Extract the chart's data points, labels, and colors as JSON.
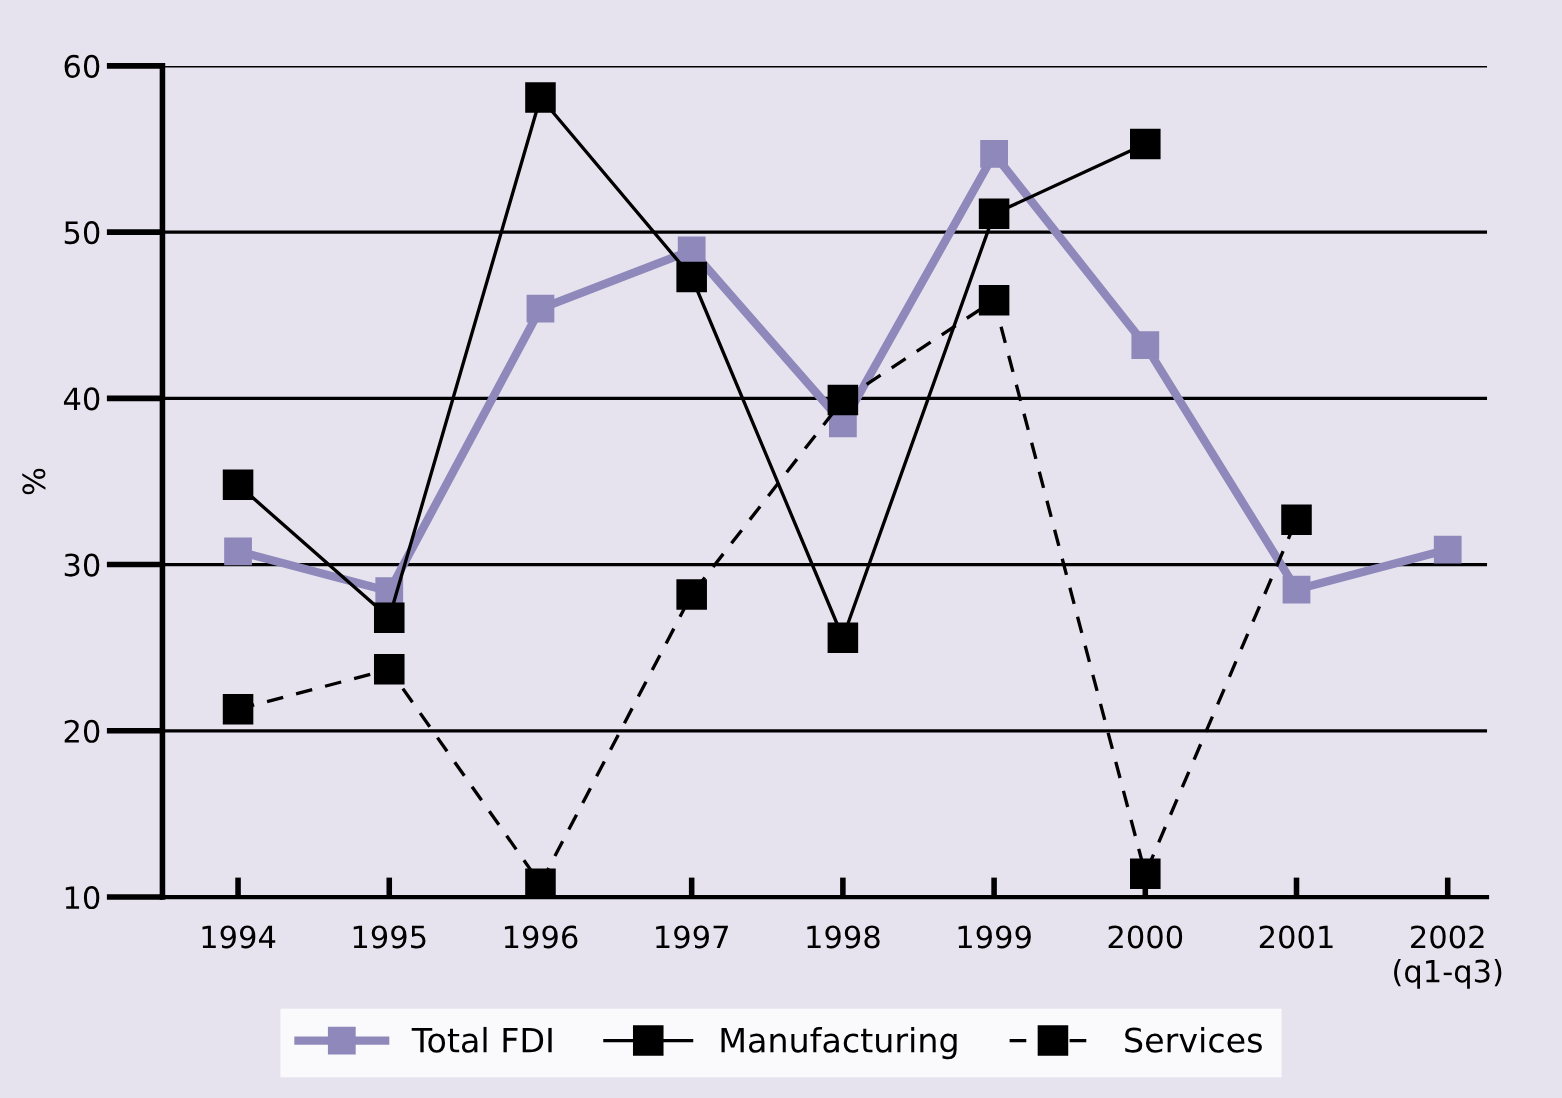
{
  "chart_data": {
    "type": "line",
    "ylabel": "%",
    "categories": [
      "1994",
      "1995",
      "1996",
      "1997",
      "1998",
      "1999",
      "2000",
      "2001",
      "2002\n(q1-q3)"
    ],
    "series": [
      {
        "name": "Total FDI",
        "color": "#8f88bb",
        "line_style": "solid",
        "values": [
          30.8,
          28.4,
          45.4,
          48.9,
          38.5,
          54.7,
          43.2,
          28.5,
          30.9
        ]
      },
      {
        "name": "Manufacturing",
        "color": "#000000",
        "line_style": "solid",
        "values": [
          34.8,
          26.8,
          58.1,
          47.3,
          25.6,
          51.1,
          55.3,
          null,
          null
        ]
      },
      {
        "name": "Services",
        "color": "#000000",
        "line_style": "dashed",
        "values": [
          21.3,
          23.7,
          10.8,
          28.2,
          39.9,
          45.9,
          11.4,
          32.7,
          null
        ]
      }
    ],
    "ylim": [
      10,
      60
    ],
    "yticks": [
      10,
      20,
      30,
      40,
      50,
      60
    ],
    "grid": "y",
    "marker": "square",
    "legend": "bottom"
  }
}
